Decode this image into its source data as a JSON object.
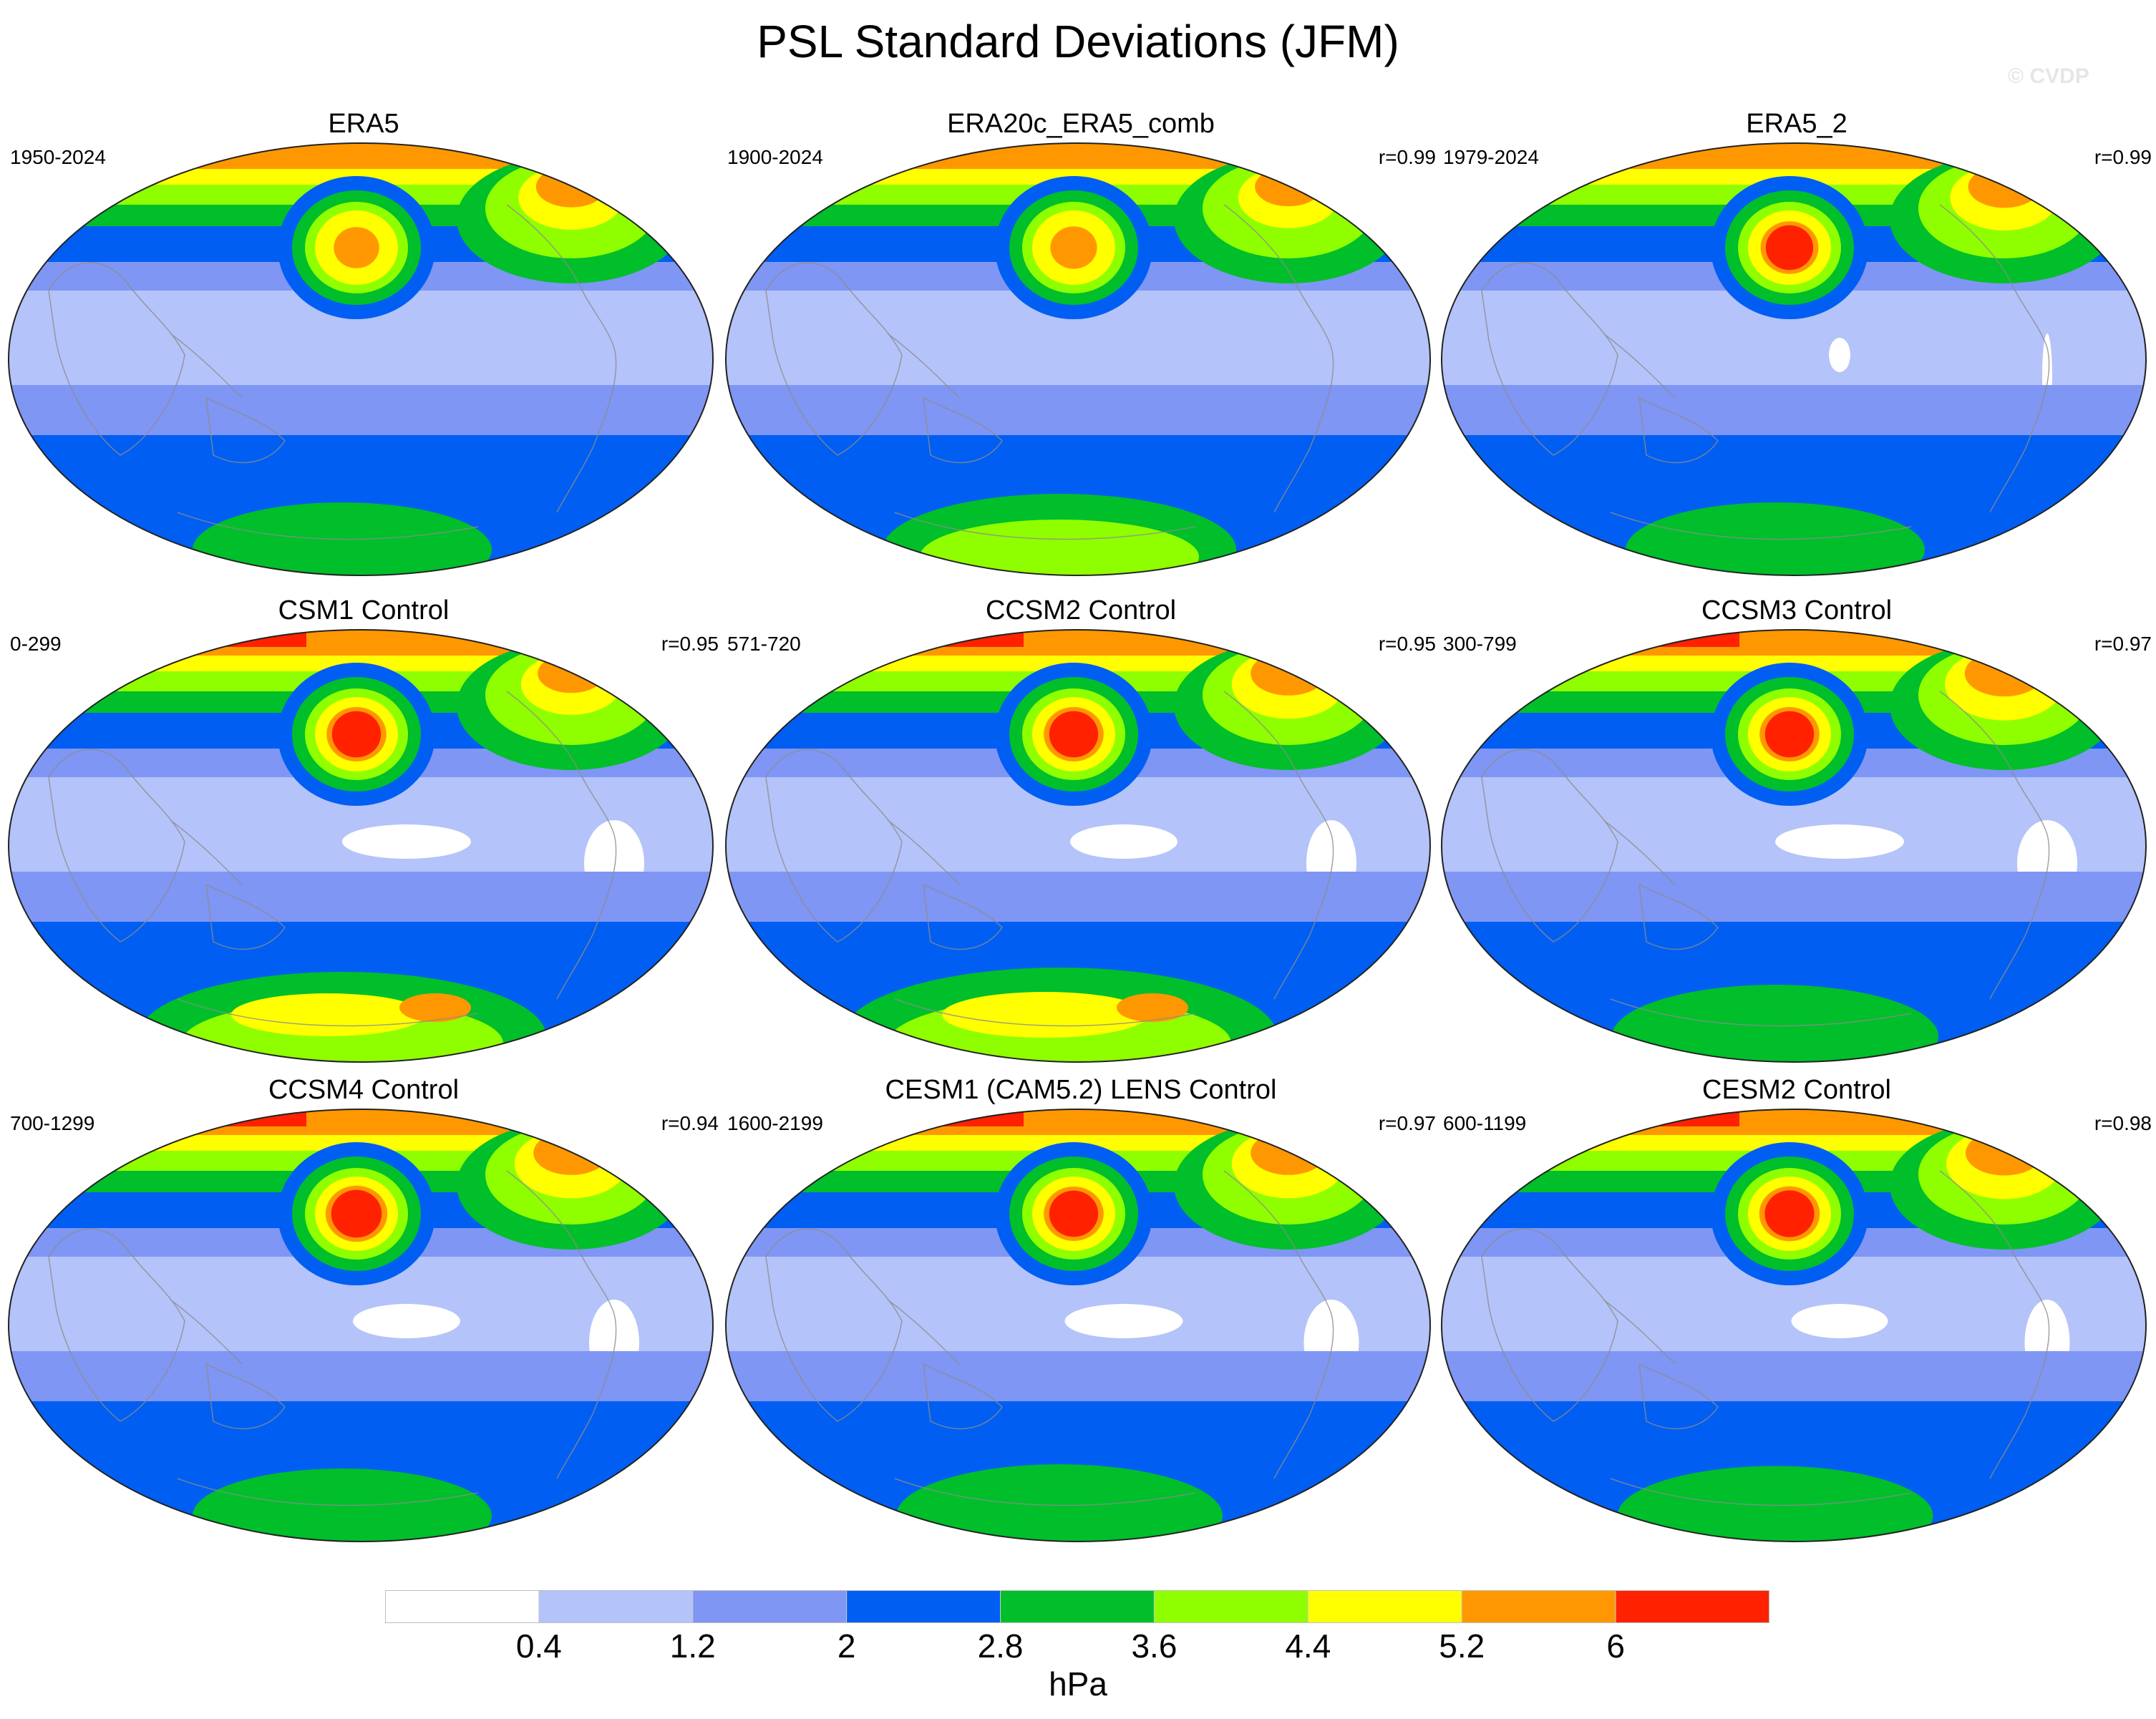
{
  "title": "PSL Standard Deviations (JFM)",
  "watermark": "© CVDP",
  "panels": [
    {
      "title": "ERA5",
      "years": "1950-2024",
      "corr": "",
      "pattern": {
        "arctic": 0.85,
        "npac": 0.72,
        "natl": 0.82,
        "south": 0.55,
        "tropic_white": 0.0
      }
    },
    {
      "title": "ERA20c_ERA5_comb",
      "years": "1900-2024",
      "corr": "r=0.99",
      "pattern": {
        "arctic": 0.85,
        "npac": 0.74,
        "natl": 0.78,
        "south": 0.65,
        "tropic_white": 0.0
      }
    },
    {
      "title": "ERA5_2",
      "years": "1979-2024",
      "corr": "r=0.99",
      "pattern": {
        "arctic": 0.9,
        "npac": 0.92,
        "natl": 0.84,
        "south": 0.55,
        "tropic_white": 0.1
      }
    },
    {
      "title": "CSM1 Control",
      "years": "0-299",
      "corr": "r=0.95",
      "pattern": {
        "arctic": 0.95,
        "npac": 0.95,
        "natl": 0.78,
        "south": 0.75,
        "tropic_white": 0.6
      }
    },
    {
      "title": "CCSM2 Control",
      "years": "571-720",
      "corr": "r=0.95",
      "pattern": {
        "arctic": 0.95,
        "npac": 0.95,
        "natl": 0.88,
        "south": 0.8,
        "tropic_white": 0.5
      }
    },
    {
      "title": "CCSM3 Control",
      "years": "300-799",
      "corr": "r=0.97",
      "pattern": {
        "arctic": 0.98,
        "npac": 0.95,
        "natl": 0.92,
        "south": 0.6,
        "tropic_white": 0.6
      }
    },
    {
      "title": "CCSM4 Control",
      "years": "700-1299",
      "corr": "r=0.94",
      "pattern": {
        "arctic": 0.98,
        "npac": 0.98,
        "natl": 0.88,
        "south": 0.55,
        "tropic_white": 0.5
      }
    },
    {
      "title": "CESM1 (CAM5.2) LENS Control",
      "years": "1600-2199",
      "corr": "r=0.97",
      "pattern": {
        "arctic": 0.95,
        "npac": 0.95,
        "natl": 0.88,
        "south": 0.6,
        "tropic_white": 0.55
      }
    },
    {
      "title": "CESM2 Control",
      "years": "600-1199",
      "corr": "r=0.98",
      "pattern": {
        "arctic": 0.98,
        "npac": 0.96,
        "natl": 0.9,
        "south": 0.58,
        "tropic_white": 0.45
      }
    }
  ],
  "colorbar": {
    "colors": [
      "#ffffff",
      "#b4c3f9",
      "#7f96f4",
      "#005ef2",
      "#00bf2a",
      "#8fff00",
      "#ffff00",
      "#ff9800",
      "#ff2100"
    ],
    "ticks": [
      "0.4",
      "1.2",
      "2",
      "2.8",
      "3.6",
      "4.4",
      "5.2",
      "6"
    ],
    "unit": "hPa"
  }
}
